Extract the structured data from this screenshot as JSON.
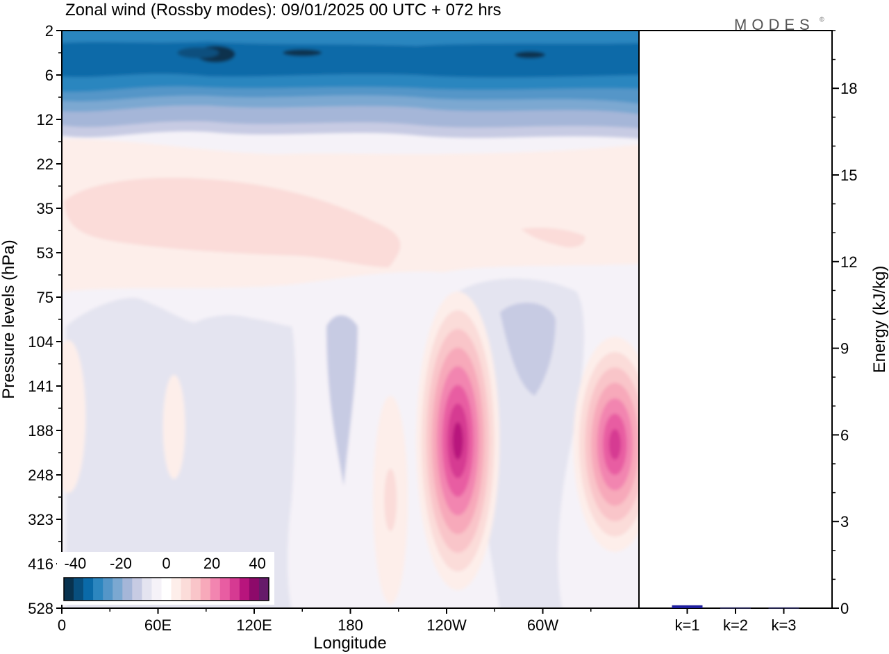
{
  "logo": "MODES",
  "logo_mark": "©",
  "chart_data": [
    {
      "type": "heatmap",
      "title": "Zonal wind (Rossby modes):  09/01/2025  00 UTC  + 072 hrs",
      "xlabel": "Longitude",
      "ylabel": "Pressure levels (hPa)",
      "x_ticks": [
        "0",
        "60E",
        "120E",
        "180",
        "120W",
        "60W"
      ],
      "x_tick_degrees": [
        0,
        60,
        120,
        180,
        240,
        300
      ],
      "xlim": [
        0,
        360
      ],
      "y_ticks": [
        "2",
        "6",
        "12",
        "22",
        "35",
        "53",
        "75",
        "104",
        "141",
        "188",
        "248",
        "323",
        "416",
        "528"
      ],
      "y_axis": "pressure levels, equally spaced, top to bottom",
      "colorbar": {
        "ticks": [
          "-40",
          "-20",
          "0",
          "20",
          "40"
        ],
        "range": [
          -45,
          45
        ],
        "step": 5,
        "colors": [
          "#08324e",
          "#084f7e",
          "#0a6aa8",
          "#2c86bf",
          "#5496c8",
          "#7ba8d1",
          "#a5b6d8",
          "#c7cbe3",
          "#e4e4f0",
          "#f5f2f8",
          "#ffffff",
          "#fdeeea",
          "#fbdcd9",
          "#f9c5c9",
          "#f7a9ba",
          "#f285b0",
          "#e85da2",
          "#d63a92",
          "#b8157d",
          "#8d0a6a",
          "#661a6a"
        ]
      },
      "features": [
        {
          "desc": "strong easterlies near top",
          "level_range": [
            "2",
            "12"
          ],
          "lon_range": [
            0,
            360
          ],
          "value": -30
        },
        {
          "desc": "easterly core",
          "level": "4",
          "lon": [
            95,
            295
          ],
          "value": -40
        },
        {
          "desc": "weak westerly band",
          "level_range": [
            "22",
            "75"
          ],
          "lon_range": [
            0,
            360
          ],
          "value": 3
        },
        {
          "desc": "westerly max",
          "level": "35",
          "lon": [
            5,
            200
          ],
          "value": 7
        },
        {
          "desc": "westerly jet",
          "level": "188",
          "lon": 247,
          "value": 40
        },
        {
          "desc": "westerly jet",
          "level": "188",
          "lon": 345,
          "value": 35
        },
        {
          "desc": "weak easterly",
          "level": "104",
          "lon": 290,
          "value": -10
        },
        {
          "desc": "weak easterly",
          "level": "141",
          "lon": 175,
          "value": -8
        }
      ]
    },
    {
      "type": "bar",
      "categories": [
        "k=1",
        "k=2",
        "k=3"
      ],
      "values": [
        0.1,
        0.03,
        0.03
      ],
      "ylabel": "Energy (kJ/kg)",
      "y_ticks": [
        0,
        3,
        6,
        9,
        12,
        15,
        18
      ],
      "ylim": [
        0,
        20
      ],
      "bar_colors": [
        "#1f1f9e",
        "#303060",
        "#303060"
      ]
    }
  ]
}
